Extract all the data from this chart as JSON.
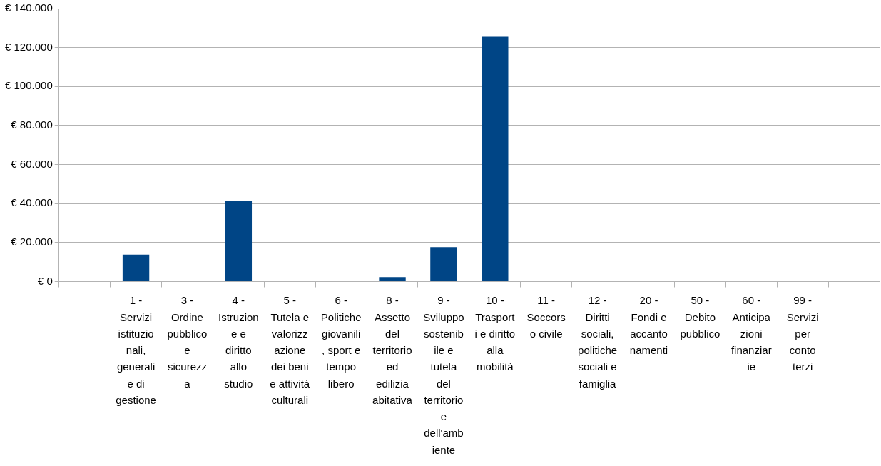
{
  "chart_data": {
    "type": "bar",
    "categories": [
      null,
      "1 - Servizi istituzionali, generali e di gestione",
      "3 - Ordine pubblico e sicurezza",
      "4 - Istruzione e diritto allo studio",
      "5 - Tutela e valorizzazione dei beni e attività culturali",
      "6 - Politiche giovanili, sport e tempo libero",
      "8 - Assetto del territorio ed edilizia abitativa",
      "9 - Sviluppo sostenibile e tutela del territorio e dell'ambiente",
      "10 - Trasporti e diritto alla mobilità",
      "11 - Soccorso civile",
      "12 - Diritti sociali, politiche sociali e famiglia",
      "20 - Fondi e accantonamenti",
      "50 - Debito pubblico",
      "60 - Anticipazioni finanziarie",
      "99 - Servizi per conto terzi",
      null
    ],
    "values": [
      null,
      13800,
      0,
      41500,
      0,
      0,
      2300,
      17700,
      125500,
      0,
      0,
      0,
      0,
      0,
      0,
      null
    ],
    "color": "#004586",
    "ylim": [
      0,
      140000
    ],
    "yticks": [
      {
        "value": 0,
        "label": "€ 0"
      },
      {
        "value": 20000,
        "label": "€ 20.000"
      },
      {
        "value": 40000,
        "label": "€ 40.000"
      },
      {
        "value": 60000,
        "label": "€ 60.000"
      },
      {
        "value": 80000,
        "label": "€ 80.000"
      },
      {
        "value": 100000,
        "label": "€ 100.000"
      },
      {
        "value": 120000,
        "label": "€ 120.000"
      },
      {
        "value": 140000,
        "label": "€ 140.000"
      }
    ],
    "grid": "y"
  }
}
